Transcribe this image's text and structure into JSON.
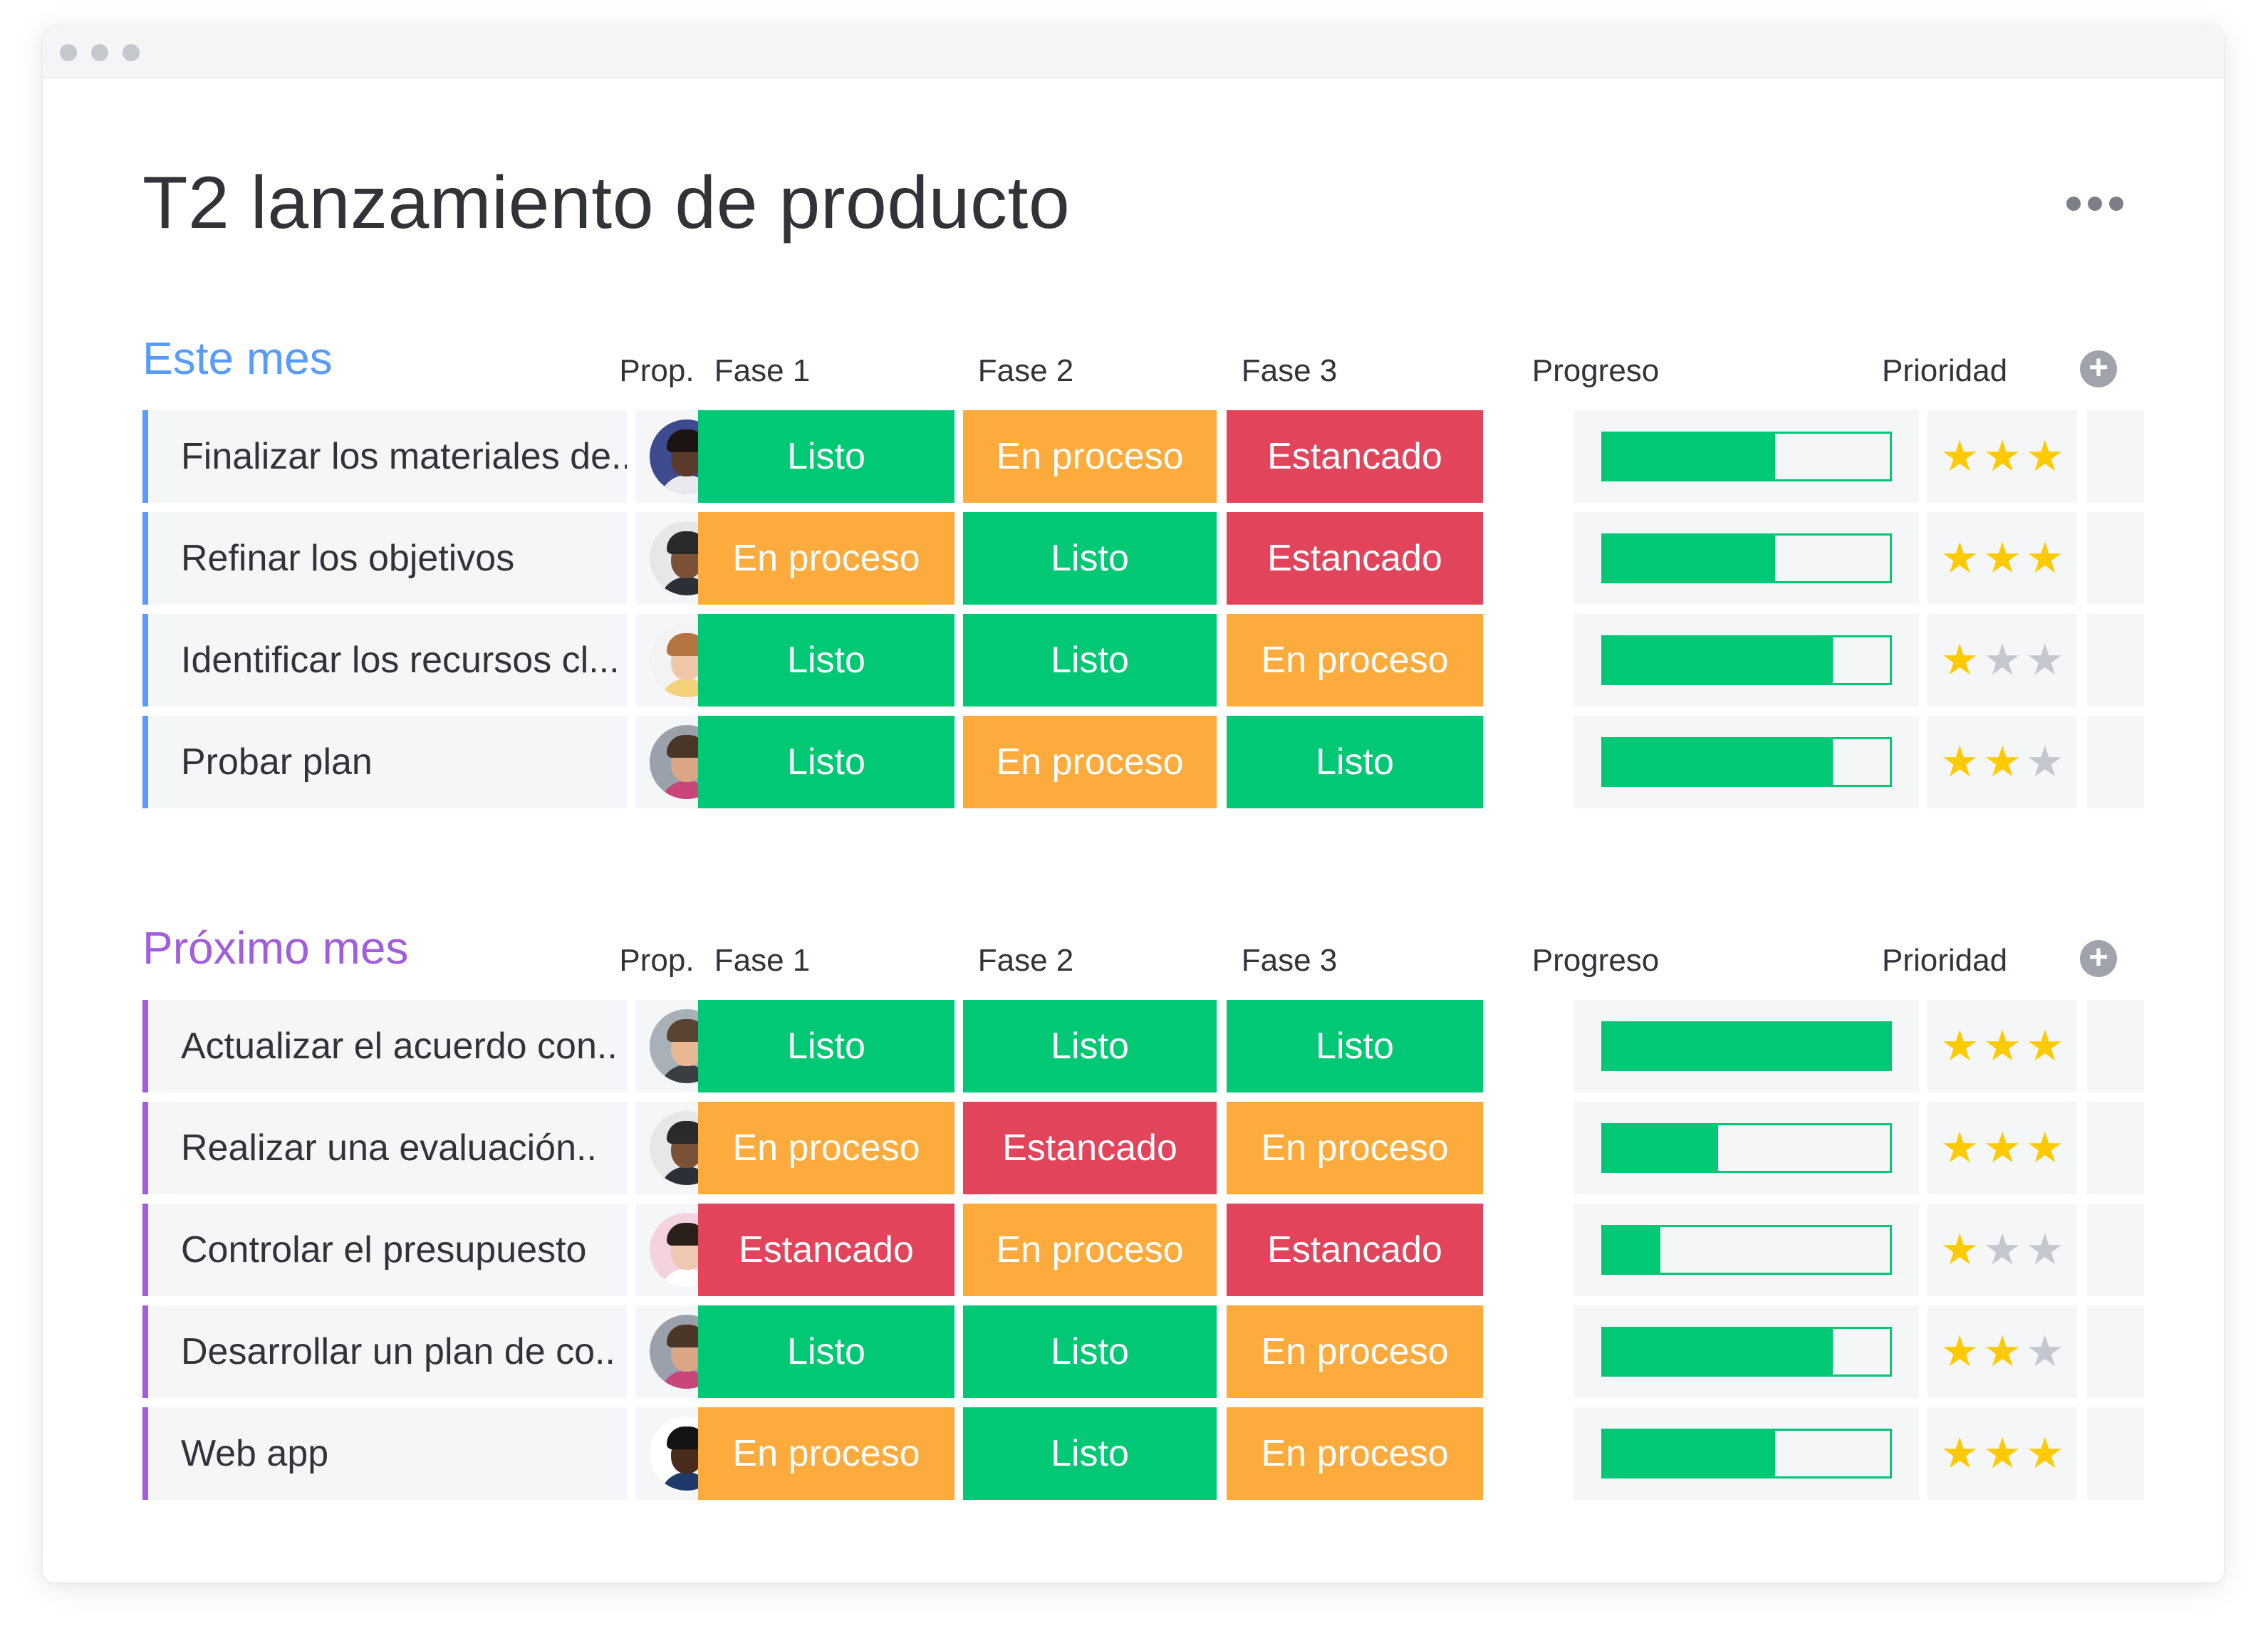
{
  "page_title": "T2 lanzamiento de producto",
  "icons": {
    "more": "more-horizontal-icon",
    "add_column": "plus-circle-icon",
    "star": "star-icon"
  },
  "colors": {
    "listo": "#00c875",
    "en_proceso": "#fdab3d",
    "estancado": "#e2445c",
    "group1": "#579bfc",
    "group2": "#a25ddc",
    "star_on": "#ffcb00",
    "star_off": "#c5c7d0"
  },
  "columns": {
    "owner": "Prop.",
    "phase1": "Fase 1",
    "phase2": "Fase 2",
    "phase3": "Fase 3",
    "progress": "Progreso",
    "priority": "Prioridad"
  },
  "groups": [
    {
      "title": "Este mes",
      "color": "#579bfc",
      "rows": [
        {
          "name": "Finalizar los materiales de..",
          "owner": "avatar-1",
          "phases": [
            "Listo",
            "En proceso",
            "Estancado"
          ],
          "progress": 0.6,
          "priority": 3
        },
        {
          "name": "Refinar los objetivos",
          "owner": "avatar-2",
          "phases": [
            "En proceso",
            "Listo",
            "Estancado"
          ],
          "progress": 0.6,
          "priority": 3
        },
        {
          "name": "Identificar los recursos cl...",
          "owner": "avatar-3",
          "phases": [
            "Listo",
            "Listo",
            "En proceso"
          ],
          "progress": 0.8,
          "priority": 1
        },
        {
          "name": "Probar plan",
          "owner": "avatar-4",
          "phases": [
            "Listo",
            "En proceso",
            "Listo"
          ],
          "progress": 0.8,
          "priority": 2
        }
      ]
    },
    {
      "title": "Próximo mes",
      "color": "#a25ddc",
      "rows": [
        {
          "name": "Actualizar el acuerdo con..",
          "owner": "avatar-5",
          "phases": [
            "Listo",
            "Listo",
            "Listo"
          ],
          "progress": 1.0,
          "priority": 3
        },
        {
          "name": "Realizar una evaluación..",
          "owner": "avatar-2",
          "phases": [
            "En proceso",
            "Estancado",
            "En proceso"
          ],
          "progress": 0.4,
          "priority": 3
        },
        {
          "name": "Controlar el presupuesto",
          "owner": "avatar-6",
          "phases": [
            "Estancado",
            "En proceso",
            "Estancado"
          ],
          "progress": 0.2,
          "priority": 1
        },
        {
          "name": "Desarrollar un plan de co..",
          "owner": "avatar-4",
          "phases": [
            "Listo",
            "Listo",
            "En proceso"
          ],
          "progress": 0.8,
          "priority": 2
        },
        {
          "name": "Web app",
          "owner": "avatar-7",
          "phases": [
            "En proceso",
            "Listo",
            "En proceso"
          ],
          "progress": 0.6,
          "priority": 3
        }
      ]
    }
  ]
}
